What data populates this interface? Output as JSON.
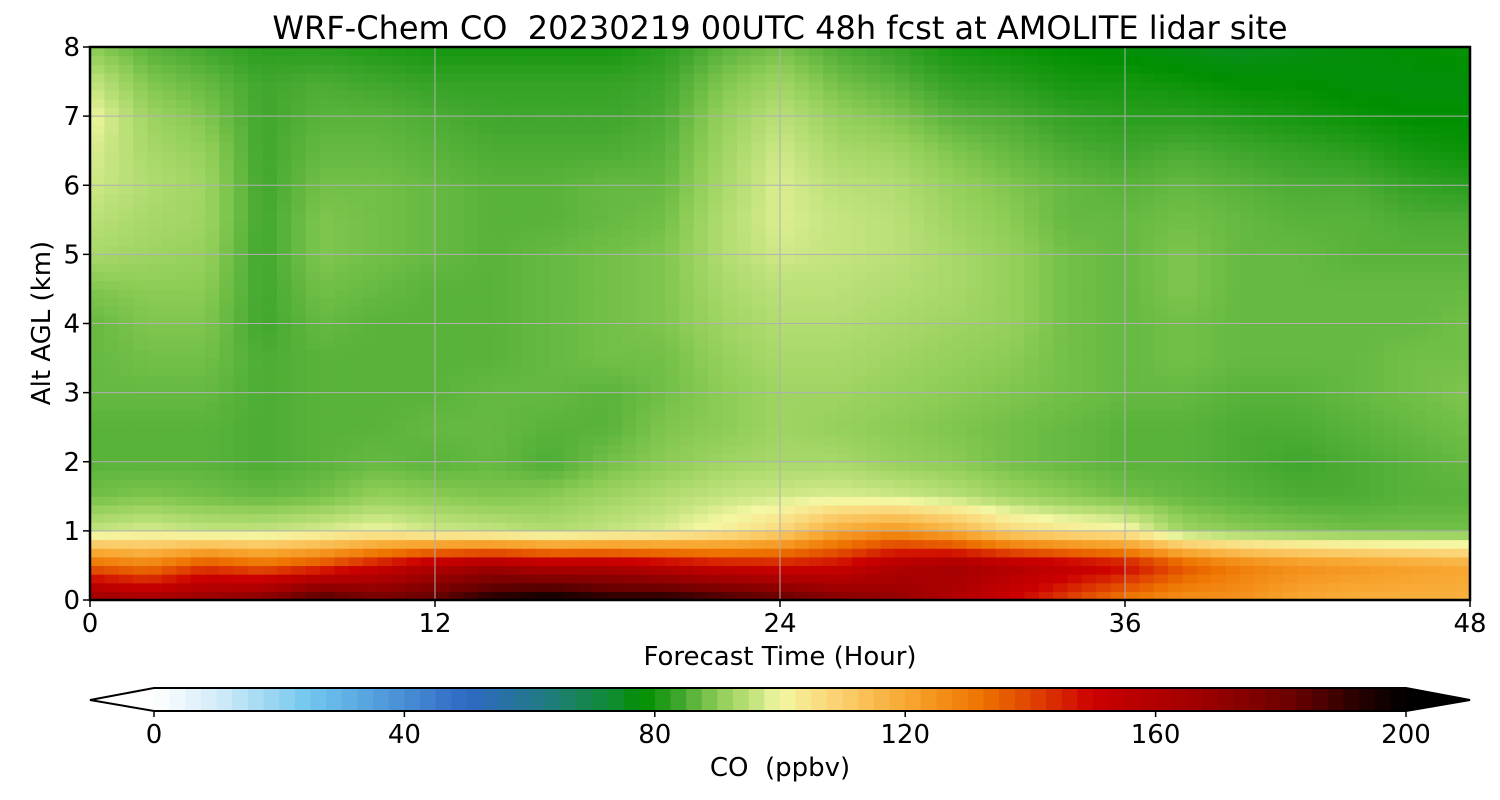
{
  "chart_data": {
    "type": "heatmap",
    "title": "WRF-Chem CO  20230219 00UTC 48h fcst at AMOLITE lidar site",
    "xlabel": "Forecast Time (Hour)",
    "ylabel": "Alt AGL (km)",
    "xlim": [
      0,
      48
    ],
    "ylim": [
      0,
      8
    ],
    "xticks": [
      0,
      12,
      24,
      36,
      48
    ],
    "yticks": [
      0,
      1,
      2,
      3,
      4,
      5,
      6,
      7,
      8
    ],
    "grid": true,
    "colorbar": {
      "label": "CO  (ppbv)",
      "min": 0,
      "max": 200,
      "ticks": [
        0,
        40,
        80,
        120,
        160,
        200
      ],
      "extend": "both",
      "orientation": "horizontal",
      "anchors": [
        {
          "value": 0,
          "color": "#ffffff"
        },
        {
          "value": 10,
          "color": "#d4ecf8"
        },
        {
          "value": 25,
          "color": "#70c6ee"
        },
        {
          "value": 50,
          "color": "#2f68c4"
        },
        {
          "value": 62,
          "color": "#217a86"
        },
        {
          "value": 74,
          "color": "#0f8d2a"
        },
        {
          "value": 78,
          "color": "#008f00"
        },
        {
          "value": 84,
          "color": "#3fa62d"
        },
        {
          "value": 90,
          "color": "#8ccc55"
        },
        {
          "value": 96,
          "color": "#c4e47f"
        },
        {
          "value": 100,
          "color": "#f4f7a3"
        },
        {
          "value": 108,
          "color": "#fbd678"
        },
        {
          "value": 120,
          "color": "#f8a832"
        },
        {
          "value": 132,
          "color": "#ee7400"
        },
        {
          "value": 140,
          "color": "#e04400"
        },
        {
          "value": 150,
          "color": "#cc0000"
        },
        {
          "value": 166,
          "color": "#a10000"
        },
        {
          "value": 182,
          "color": "#6a0000"
        },
        {
          "value": 194,
          "color": "#1e0000"
        },
        {
          "value": 200,
          "color": "#000000"
        }
      ]
    },
    "x_hours": [
      0,
      2,
      4,
      6,
      8,
      10,
      12,
      14,
      16,
      18,
      20,
      22,
      24,
      26,
      28,
      30,
      32,
      34,
      36,
      38,
      40,
      42,
      44,
      46,
      48
    ],
    "y_km": [
      0,
      0.5,
      1,
      1.5,
      2,
      2.5,
      3,
      3.5,
      4,
      4.5,
      5,
      5.5,
      6,
      6.5,
      7,
      7.5,
      8
    ],
    "values_ppbv": [
      [
        170,
        165,
        170,
        175,
        190,
        180,
        185,
        195,
        200,
        195,
        195,
        190,
        185,
        175,
        170,
        160,
        150,
        140,
        130,
        125,
        125,
        120,
        118,
        118,
        118
      ],
      [
        135,
        130,
        140,
        135,
        140,
        150,
        160,
        165,
        160,
        160,
        155,
        150,
        148,
        150,
        160,
        165,
        160,
        155,
        150,
        138,
        130,
        126,
        124,
        122,
        120
      ],
      [
        96,
        98,
        96,
        96,
        98,
        100,
        97,
        96,
        94,
        96,
        98,
        102,
        108,
        120,
        125,
        118,
        108,
        104,
        102,
        92,
        90,
        89,
        88,
        88,
        88
      ],
      [
        88,
        89,
        88,
        87,
        88,
        91,
        90,
        89,
        90,
        92,
        94,
        96,
        97,
        98,
        97,
        95,
        92,
        90,
        88,
        87,
        86,
        85,
        85,
        86,
        86
      ],
      [
        86,
        86,
        86,
        85,
        86,
        87,
        86,
        87,
        85,
        88,
        90,
        92,
        93,
        93,
        91,
        90,
        88,
        87,
        86,
        86,
        85,
        84,
        85,
        86,
        87
      ],
      [
        86,
        86,
        86,
        85,
        86,
        86,
        87,
        87,
        86,
        86,
        89,
        90,
        92,
        91,
        90,
        89,
        88,
        87,
        86,
        86,
        85,
        85,
        86,
        87,
        88
      ],
      [
        87,
        87,
        87,
        85,
        86,
        86,
        86,
        87,
        87,
        86,
        88,
        90,
        92,
        92,
        91,
        90,
        89,
        88,
        87,
        87,
        86,
        86,
        87,
        88,
        89
      ],
      [
        87,
        88,
        88,
        85,
        86,
        86,
        86,
        86,
        87,
        88,
        88,
        91,
        93,
        93,
        92,
        91,
        90,
        88,
        87,
        88,
        87,
        87,
        87,
        88,
        88
      ],
      [
        87,
        89,
        89,
        84,
        87,
        86,
        86,
        86,
        87,
        88,
        89,
        92,
        94,
        94,
        93,
        92,
        91,
        88,
        87,
        88,
        87,
        87,
        87,
        87,
        88
      ],
      [
        89,
        90,
        90,
        84,
        88,
        87,
        86,
        86,
        87,
        88,
        89,
        93,
        95,
        95,
        94,
        93,
        91,
        88,
        87,
        89,
        87,
        87,
        87,
        87,
        87
      ],
      [
        93,
        92,
        91,
        84,
        89,
        88,
        87,
        86,
        87,
        88,
        89,
        94,
        97,
        96,
        95,
        93,
        91,
        88,
        87,
        89,
        87,
        87,
        86,
        86,
        86
      ],
      [
        95,
        93,
        92,
        84,
        89,
        88,
        87,
        86,
        86,
        87,
        88,
        94,
        98,
        96,
        95,
        92,
        90,
        87,
        87,
        88,
        87,
        86,
        86,
        85,
        85
      ],
      [
        97,
        94,
        92,
        84,
        88,
        88,
        87,
        86,
        86,
        87,
        87,
        93,
        98,
        95,
        94,
        91,
        89,
        87,
        86,
        87,
        86,
        85,
        85,
        83,
        82
      ],
      [
        98,
        93,
        91,
        84,
        87,
        87,
        86,
        85,
        85,
        85,
        86,
        92,
        97,
        93,
        92,
        89,
        87,
        85,
        84,
        85,
        84,
        83,
        82,
        80,
        79
      ],
      [
        100,
        92,
        89,
        84,
        86,
        86,
        85,
        84,
        84,
        84,
        85,
        91,
        95,
        91,
        89,
        86,
        85,
        83,
        82,
        82,
        81,
        80,
        79,
        78,
        78
      ],
      [
        96,
        89,
        87,
        84,
        85,
        84,
        83,
        83,
        83,
        83,
        84,
        89,
        92,
        88,
        86,
        83,
        82,
        80,
        80,
        79,
        78,
        78,
        77,
        77,
        77
      ],
      [
        90,
        86,
        84,
        82,
        82,
        81,
        80,
        80,
        80,
        80,
        82,
        86,
        88,
        85,
        83,
        80,
        79,
        78,
        77,
        76,
        75,
        76,
        77,
        78,
        79
      ]
    ]
  }
}
